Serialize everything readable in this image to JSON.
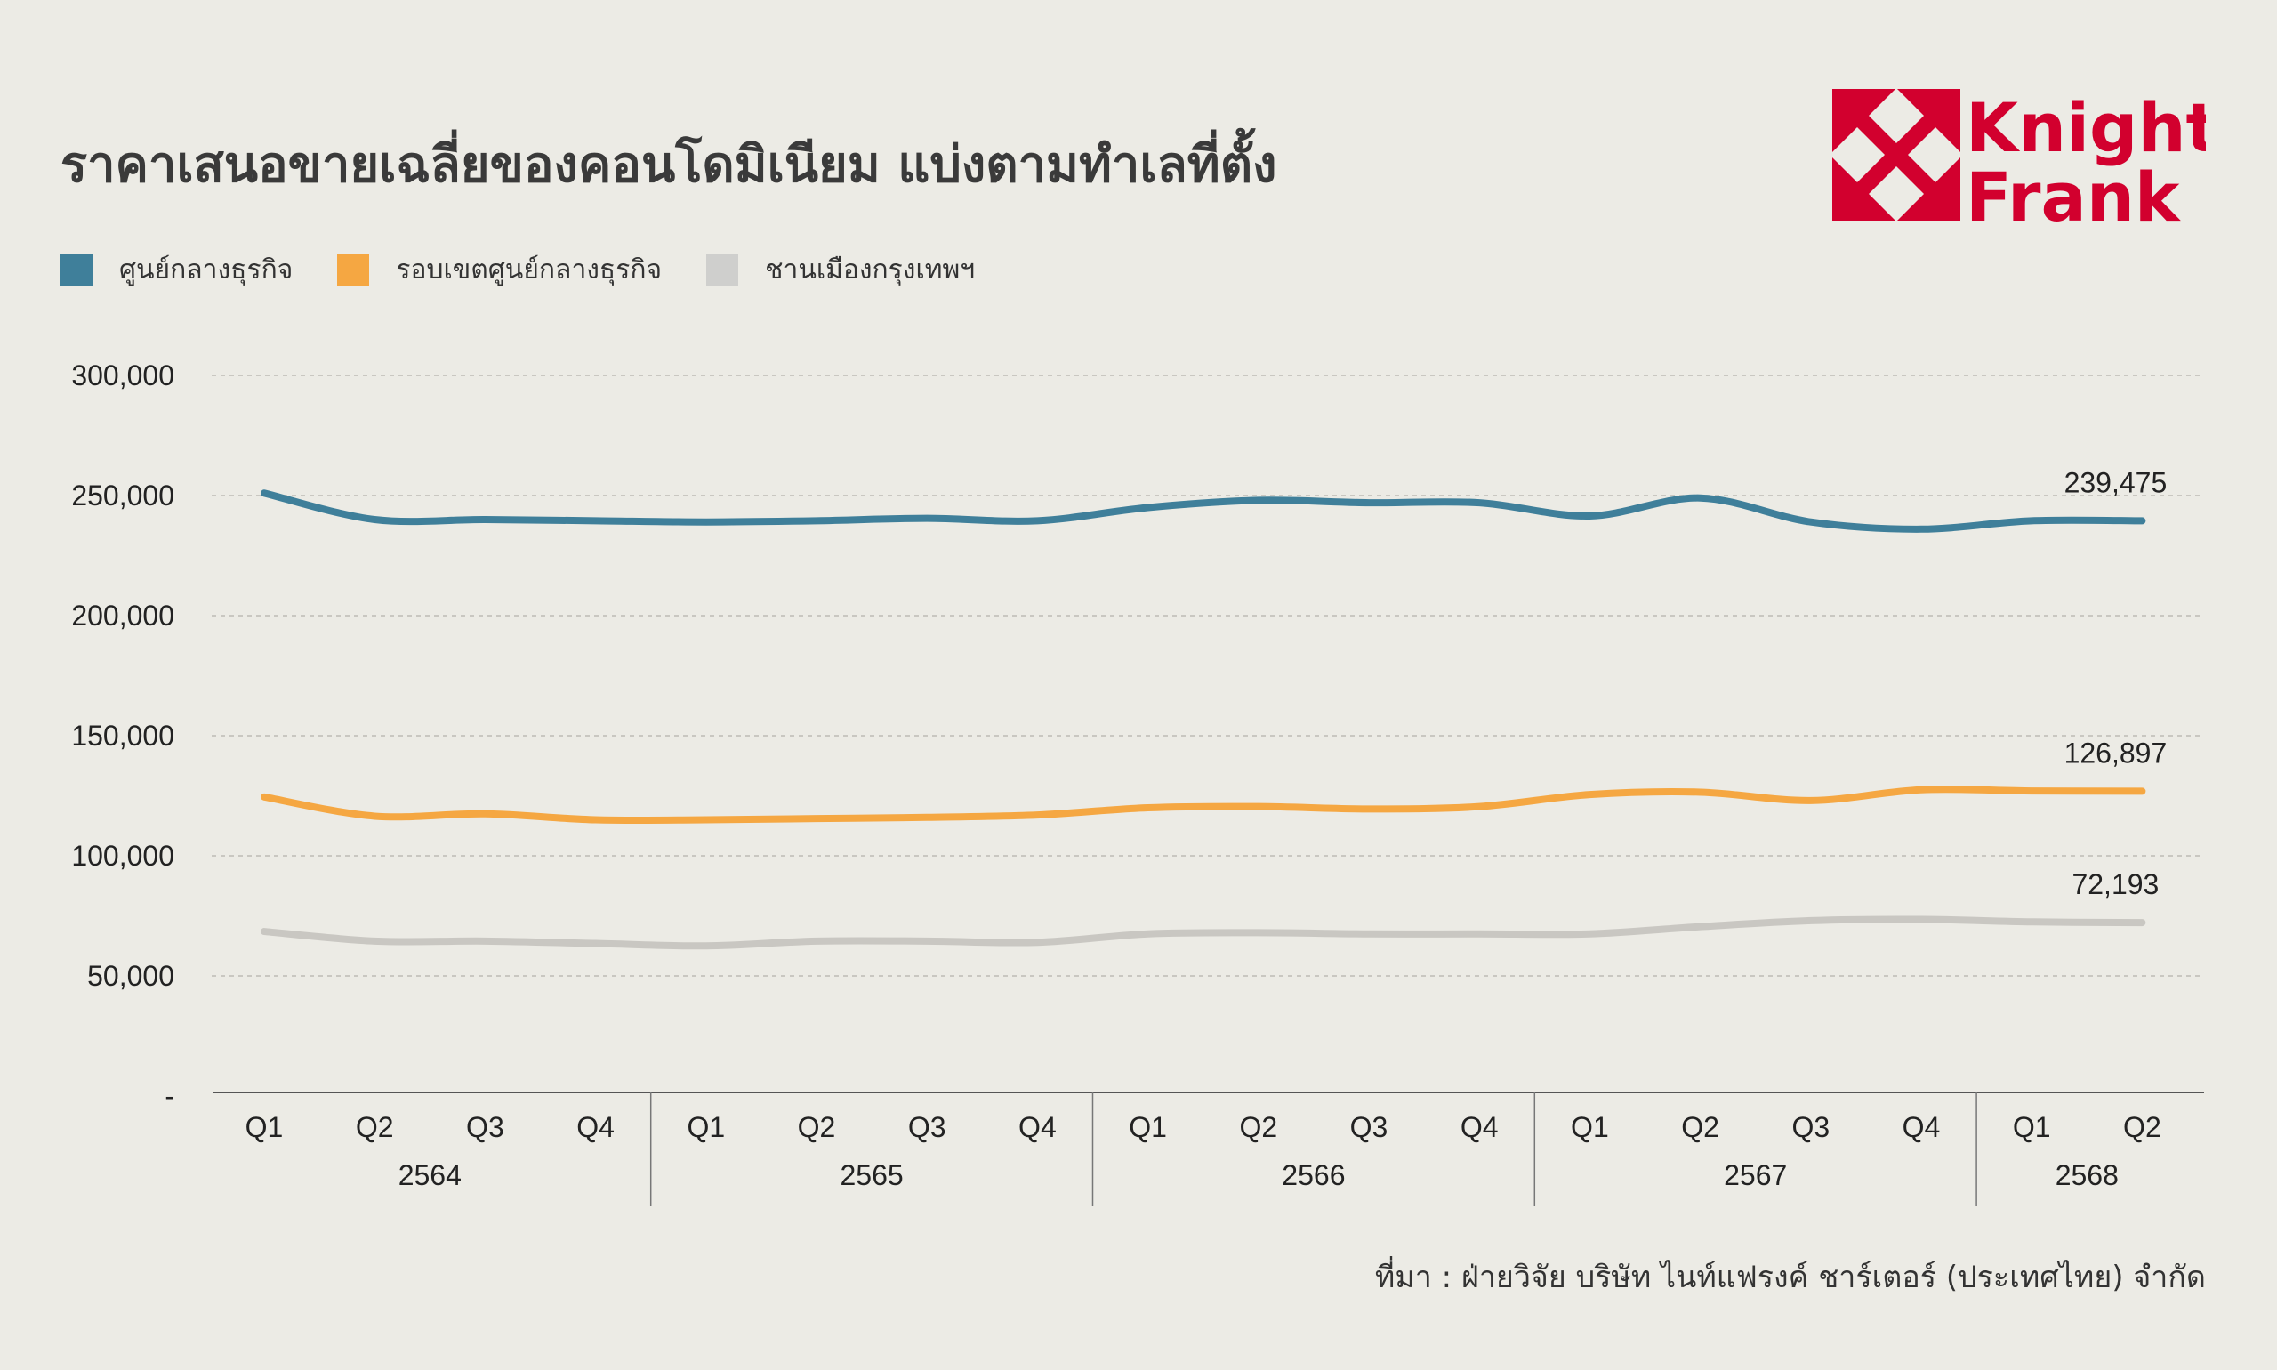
{
  "title": "ราคาเสนอขายเฉลี่ยของคอนโดมิเนียม แบ่งตามทำเลที่ตั้ง",
  "logo": {
    "line1": "Knight",
    "line2": "Frank",
    "color": "#D2002E"
  },
  "source": "ที่มา : ฝ่ายวิจัย บริษัท ไนท์แฟรงค์ ชาร์เตอร์ (ประเทศไทย) จำกัด",
  "chart_data": {
    "type": "line",
    "quarters": [
      "Q1",
      "Q2",
      "Q3",
      "Q4",
      "Q1",
      "Q2",
      "Q3",
      "Q4",
      "Q1",
      "Q2",
      "Q3",
      "Q4",
      "Q1",
      "Q2",
      "Q3",
      "Q4",
      "Q1",
      "Q2"
    ],
    "years": [
      {
        "label": "2564",
        "start": 0,
        "end": 3
      },
      {
        "label": "2565",
        "start": 4,
        "end": 7
      },
      {
        "label": "2566",
        "start": 8,
        "end": 11
      },
      {
        "label": "2567",
        "start": 12,
        "end": 15
      },
      {
        "label": "2568",
        "start": 16,
        "end": 17
      }
    ],
    "ylim": [
      0,
      300000
    ],
    "yticks": [
      {
        "value": 0,
        "label": "-"
      },
      {
        "value": 50000,
        "label": "50,000"
      },
      {
        "value": 100000,
        "label": "100,000"
      },
      {
        "value": 150000,
        "label": "150,000"
      },
      {
        "value": 200000,
        "label": "200,000"
      },
      {
        "value": 250000,
        "label": "250,000"
      },
      {
        "value": 300000,
        "label": "300,000"
      }
    ],
    "grid": true,
    "legend_position": "top-left",
    "series": [
      {
        "name": "ศูนย์กลางธุรกิจ",
        "color": "#3F7F9A",
        "values": [
          251000,
          240000,
          240000,
          239500,
          239000,
          239500,
          240500,
          239500,
          245000,
          248000,
          247000,
          247000,
          241500,
          249000,
          239000,
          236000,
          239500,
          239475
        ],
        "end_label": "239,475"
      },
      {
        "name": "รอบเขตศูนย์กลางธุรกิจ",
        "color": "#F5A742",
        "values": [
          124500,
          116500,
          117500,
          115000,
          115000,
          115500,
          116000,
          117000,
          120000,
          120500,
          119500,
          120500,
          125500,
          126500,
          123000,
          127500,
          127000,
          126897
        ],
        "end_label": "126,897"
      },
      {
        "name": "ชานเมืองกรุงเทพฯ",
        "color": "#C9C7C2",
        "legend_color": "#CFCFCD",
        "values": [
          68500,
          64500,
          64500,
          63500,
          62500,
          64500,
          64500,
          64000,
          67500,
          68000,
          67500,
          67500,
          67500,
          70500,
          73000,
          73500,
          72500,
          72193
        ],
        "end_label": "72,193"
      }
    ]
  }
}
